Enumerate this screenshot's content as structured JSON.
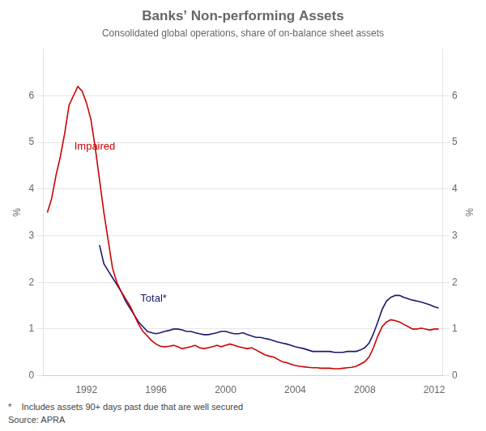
{
  "chart_data": {
    "type": "line",
    "title": "Banks’ Non-performing Assets",
    "subtitle": "Consolidated global operations, share of on-balance sheet assets",
    "footnote": "*    Includes assets 90+ days past due that are well secured",
    "source": "Source: APRA",
    "ylabel": "%",
    "y2label": "%",
    "xlim": [
      1989.5,
      2012.5
    ],
    "xticks": [
      1992,
      1996,
      2000,
      2004,
      2008,
      2012
    ],
    "ylim": [
      0,
      7
    ],
    "yticks": [
      0,
      1,
      2,
      3,
      4,
      5,
      6
    ],
    "y2lim": [
      0,
      7
    ],
    "y2ticks": [
      0,
      1,
      2,
      3,
      4,
      5,
      6
    ],
    "grid": true,
    "series": [
      {
        "color": "#cc0000",
        "x": [
          1989.75,
          1990.0,
          1990.25,
          1990.5,
          1990.75,
          1991.0,
          1991.25,
          1991.5,
          1991.75,
          1992.0,
          1992.25,
          1992.5,
          1992.75,
          1993.0,
          1993.25,
          1993.5,
          1993.75,
          1994.0,
          1994.25,
          1994.5,
          1994.75,
          1995.0,
          1995.25,
          1995.5,
          1995.75,
          1996.0,
          1996.25,
          1996.5,
          1996.75,
          1997.0,
          1997.25,
          1997.5,
          1997.75,
          1998.0,
          1998.25,
          1998.5,
          1998.75,
          1999.0,
          1999.25,
          1999.5,
          1999.75,
          2000.0,
          2000.25,
          2000.5,
          2000.75,
          2001.0,
          2001.25,
          2001.5,
          2001.75,
          2002.0,
          2002.25,
          2002.5,
          2002.75,
          2003.0,
          2003.25,
          2003.5,
          2003.75,
          2004.0,
          2004.25,
          2004.5,
          2004.75,
          2005.0,
          2005.25,
          2005.5,
          2005.75,
          2006.0,
          2006.25,
          2006.5,
          2006.75,
          2007.0,
          2007.25,
          2007.5,
          2007.75,
          2008.0,
          2008.25,
          2008.5,
          2008.75,
          2009.0,
          2009.25,
          2009.5,
          2009.75,
          2010.0,
          2010.25,
          2010.5,
          2010.75,
          2011.0,
          2011.25,
          2011.5,
          2011.75,
          2012.0,
          2012.25
        ],
        "values": [
          3.5,
          3.8,
          4.3,
          4.7,
          5.2,
          5.8,
          6.0,
          6.2,
          6.1,
          5.85,
          5.5,
          4.9,
          4.2,
          3.5,
          2.9,
          2.3,
          2.0,
          1.8,
          1.65,
          1.5,
          1.3,
          1.1,
          0.95,
          0.85,
          0.75,
          0.68,
          0.63,
          0.62,
          0.63,
          0.65,
          0.62,
          0.58,
          0.6,
          0.62,
          0.65,
          0.6,
          0.58,
          0.6,
          0.62,
          0.65,
          0.62,
          0.65,
          0.68,
          0.65,
          0.62,
          0.6,
          0.58,
          0.6,
          0.55,
          0.5,
          0.45,
          0.42,
          0.4,
          0.35,
          0.3,
          0.28,
          0.25,
          0.22,
          0.2,
          0.19,
          0.18,
          0.17,
          0.17,
          0.16,
          0.16,
          0.16,
          0.15,
          0.15,
          0.16,
          0.17,
          0.18,
          0.2,
          0.25,
          0.3,
          0.4,
          0.6,
          0.85,
          1.05,
          1.15,
          1.2,
          1.18,
          1.15,
          1.1,
          1.05,
          1.0,
          1.0,
          1.02,
          1.0,
          0.98,
          1.0,
          1.0
        ]
      },
      {
        "color": "#1a1a6e",
        "x": [
          1992.75,
          1993.0,
          1993.25,
          1993.5,
          1993.75,
          1994.0,
          1994.25,
          1994.5,
          1994.75,
          1995.0,
          1995.25,
          1995.5,
          1995.75,
          1996.0,
          1996.25,
          1996.5,
          1996.75,
          1997.0,
          1997.25,
          1997.5,
          1997.75,
          1998.0,
          1998.25,
          1998.5,
          1998.75,
          1999.0,
          1999.25,
          1999.5,
          1999.75,
          2000.0,
          2000.25,
          2000.5,
          2000.75,
          2001.0,
          2001.25,
          2001.5,
          2001.75,
          2002.0,
          2002.25,
          2002.5,
          2002.75,
          2003.0,
          2003.25,
          2003.5,
          2003.75,
          2004.0,
          2004.25,
          2004.5,
          2004.75,
          2005.0,
          2005.25,
          2005.5,
          2005.75,
          2006.0,
          2006.25,
          2006.5,
          2006.75,
          2007.0,
          2007.25,
          2007.5,
          2007.75,
          2008.0,
          2008.25,
          2008.5,
          2008.75,
          2009.0,
          2009.25,
          2009.5,
          2009.75,
          2010.0,
          2010.25,
          2010.5,
          2010.75,
          2011.0,
          2011.25,
          2011.5,
          2011.75,
          2012.0,
          2012.25
        ],
        "values": [
          2.8,
          2.4,
          2.25,
          2.1,
          1.95,
          1.8,
          1.6,
          1.45,
          1.3,
          1.15,
          1.05,
          0.95,
          0.92,
          0.9,
          0.92,
          0.95,
          0.97,
          1.0,
          1.0,
          0.98,
          0.95,
          0.95,
          0.92,
          0.9,
          0.88,
          0.88,
          0.9,
          0.92,
          0.95,
          0.95,
          0.92,
          0.9,
          0.9,
          0.92,
          0.88,
          0.85,
          0.82,
          0.82,
          0.8,
          0.78,
          0.75,
          0.72,
          0.7,
          0.68,
          0.65,
          0.62,
          0.6,
          0.58,
          0.55,
          0.52,
          0.52,
          0.52,
          0.52,
          0.52,
          0.5,
          0.5,
          0.5,
          0.52,
          0.52,
          0.52,
          0.55,
          0.6,
          0.7,
          0.9,
          1.15,
          1.42,
          1.6,
          1.68,
          1.72,
          1.72,
          1.68,
          1.65,
          1.62,
          1.6,
          1.58,
          1.55,
          1.52,
          1.48,
          1.45
        ]
      }
    ],
    "annotations": [
      {
        "text": "Impaired",
        "x": 1991.3,
        "y": 4.85,
        "color": "#cc0000"
      },
      {
        "text": "Total*",
        "x": 1995.1,
        "y": 1.58,
        "color": "#1a1a6e"
      }
    ]
  }
}
